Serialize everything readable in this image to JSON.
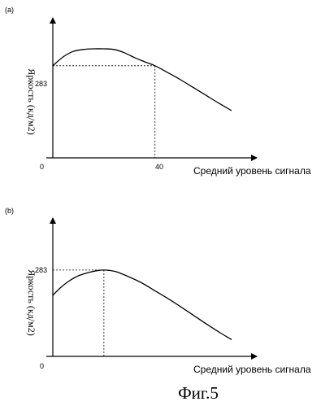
{
  "figure_caption": "Фиг.5",
  "chart_data": [
    {
      "panel_label": "(a)",
      "type": "line",
      "xlabel": "Средний уровень сигнала",
      "ylabel": "Яркость (кд/м2)",
      "origin_label": "0",
      "x_tick_labels": [
        "40"
      ],
      "y_tick_labels": [
        "283"
      ],
      "reference": {
        "x": 40,
        "y": 283
      },
      "xlim": [
        0,
        70
      ],
      "ylim": [
        0,
        400
      ],
      "series": [
        {
          "x": [
            0,
            4,
            8,
            12,
            16,
            20,
            24,
            28,
            32,
            36,
            40,
            45,
            50,
            55,
            60,
            65,
            70
          ],
          "y": [
            283,
            310,
            327,
            333,
            335,
            335,
            333,
            323,
            308,
            295,
            283,
            262,
            240,
            216,
            192,
            168,
            145
          ]
        }
      ]
    },
    {
      "panel_label": "(b)",
      "type": "line",
      "xlabel": "Средний уровень сигнала",
      "ylabel": "Яркость (кд/м2)",
      "origin_label": "0",
      "x_tick_labels": [],
      "y_tick_labels": [
        "283"
      ],
      "reference": {
        "x": 20,
        "y": 283
      },
      "xlim": [
        0,
        70
      ],
      "ylim": [
        0,
        400
      ],
      "series": [
        {
          "x": [
            0,
            3,
            6,
            9,
            12,
            15,
            18,
            20,
            22,
            25,
            30,
            35,
            40,
            45,
            50,
            55,
            60,
            65,
            70
          ],
          "y": [
            200,
            225,
            245,
            260,
            270,
            277,
            282,
            283,
            282,
            277,
            260,
            240,
            215,
            190,
            163,
            135,
            107,
            80,
            55
          ]
        }
      ]
    }
  ]
}
